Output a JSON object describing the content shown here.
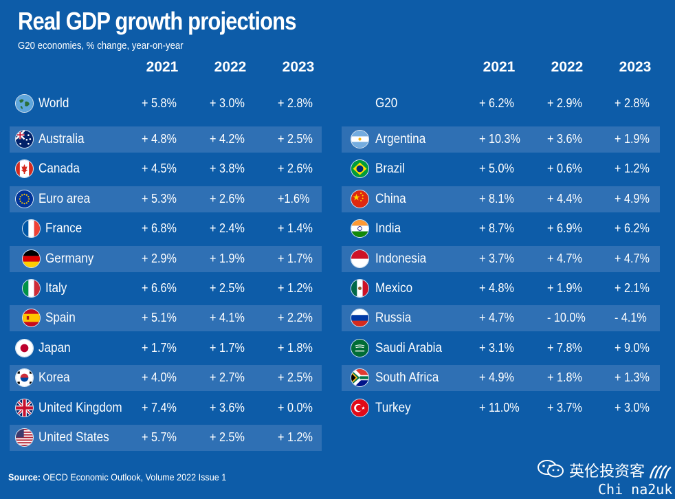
{
  "chart_data": {
    "type": "table",
    "title": "Real GDP growth projections",
    "subtitle": "G20 economies, % change, year-on-year",
    "years": [
      "2021",
      "2022",
      "2023"
    ],
    "left_rows": [
      {
        "name": "World",
        "values": [
          "+ 5.8%",
          "+ 3.0%",
          "+ 2.8%"
        ],
        "flag": "globe-icon",
        "indent": false,
        "band": false
      },
      {
        "name": "Australia",
        "values": [
          "+ 4.8%",
          "+ 4.2%",
          "+ 2.5%"
        ],
        "flag": "australia-flag-icon",
        "indent": false,
        "band": true
      },
      {
        "name": "Canada",
        "values": [
          "+ 4.5%",
          "+  3.8%",
          "+ 2.6%"
        ],
        "flag": "canada-flag-icon",
        "indent": false,
        "band": false
      },
      {
        "name": "Euro area",
        "values": [
          "+ 5.3%",
          "+ 2.6%",
          "+1.6%"
        ],
        "flag": "eu-flag-icon",
        "indent": false,
        "band": true
      },
      {
        "name": "France",
        "values": [
          "+ 6.8%",
          "+ 2.4%",
          "+ 1.4%"
        ],
        "flag": "france-flag-icon",
        "indent": true,
        "band": false
      },
      {
        "name": "Germany",
        "values": [
          "+ 2.9%",
          "+ 1.9%",
          "+ 1.7%"
        ],
        "flag": "germany-flag-icon",
        "indent": true,
        "band": true
      },
      {
        "name": "Italy",
        "values": [
          "+ 6.6%",
          "+ 2.5%",
          "+ 1.2%"
        ],
        "flag": "italy-flag-icon",
        "indent": true,
        "band": false
      },
      {
        "name": "Spain",
        "values": [
          "+ 5.1%",
          "+ 4.1%",
          "+ 2.2%"
        ],
        "flag": "spain-flag-icon",
        "indent": true,
        "band": true
      },
      {
        "name": "Japan",
        "values": [
          "+ 1.7%",
          "+ 1.7%",
          "+ 1.8%"
        ],
        "flag": "japan-flag-icon",
        "indent": false,
        "band": false
      },
      {
        "name": "Korea",
        "values": [
          "+ 4.0%",
          "+ 2.7%",
          "+ 2.5%"
        ],
        "flag": "korea-flag-icon",
        "indent": false,
        "band": true
      },
      {
        "name": "United Kingdom",
        "values": [
          "+ 7.4%",
          "+ 3.6%",
          "+ 0.0%"
        ],
        "flag": "uk-flag-icon",
        "indent": false,
        "band": false
      },
      {
        "name": "United States",
        "values": [
          "+ 5.7%",
          "+ 2.5%",
          "+ 1.2%"
        ],
        "flag": "us-flag-icon",
        "indent": false,
        "band": true
      }
    ],
    "right_rows": [
      {
        "name": "G20",
        "values": [
          "+ 6.2%",
          "+ 2.9%",
          "+  2.8%"
        ],
        "flag": "",
        "band": false
      },
      {
        "name": "Argentina",
        "values": [
          "+ 10.3%",
          "+ 3.6%",
          "+ 1.9%"
        ],
        "flag": "argentina-flag-icon",
        "band": true
      },
      {
        "name": "Brazil",
        "values": [
          "+ 5.0%",
          "+ 0.6%",
          "+ 1.2%"
        ],
        "flag": "brazil-flag-icon",
        "band": false
      },
      {
        "name": "China",
        "values": [
          "+ 8.1%",
          "+ 4.4%",
          "+ 4.9%"
        ],
        "flag": "china-flag-icon",
        "band": true
      },
      {
        "name": "India",
        "values": [
          "+ 8.7%",
          "+ 6.9%",
          "+ 6.2%"
        ],
        "flag": "india-flag-icon",
        "band": false
      },
      {
        "name": "Indonesia",
        "values": [
          "+ 3.7%",
          "+ 4.7%",
          "+ 4.7%"
        ],
        "flag": "indonesia-flag-icon",
        "band": true
      },
      {
        "name": "Mexico",
        "values": [
          "+ 4.8%",
          "+ 1.9%",
          "+ 2.1%"
        ],
        "flag": "mexico-flag-icon",
        "band": false
      },
      {
        "name": "Russia",
        "values": [
          "+ 4.7%",
          "- 10.0%",
          "- 4.1%"
        ],
        "flag": "russia-flag-icon",
        "band": true
      },
      {
        "name": "Saudi Arabia",
        "values": [
          "+ 3.1%",
          "+ 7.8%",
          "+ 9.0%"
        ],
        "flag": "saudi-flag-icon",
        "band": false
      },
      {
        "name": "South Africa",
        "values": [
          "+ 4.9%",
          "+ 1.8%",
          "+ 1.3%"
        ],
        "flag": "south-africa-flag-icon",
        "band": true
      },
      {
        "name": "Turkey",
        "values": [
          "+  11.0%",
          "+ 3.7%",
          "+ 3.0%"
        ],
        "flag": "turkey-flag-icon",
        "band": false
      }
    ]
  },
  "footer": {
    "source_label": "Source:",
    "source_text": " OECD Economic Outlook, Volume 2022 Issue 1"
  },
  "watermark": {
    "chinese": "英伦投资客",
    "latin": "Chi na2uk",
    "wechat_icon": "wechat-icon",
    "oecd_logo": "oecd-logo-icon"
  },
  "colors": {
    "background": "#0d5ca8",
    "band": "#2f70b4",
    "text": "#ffffff"
  }
}
